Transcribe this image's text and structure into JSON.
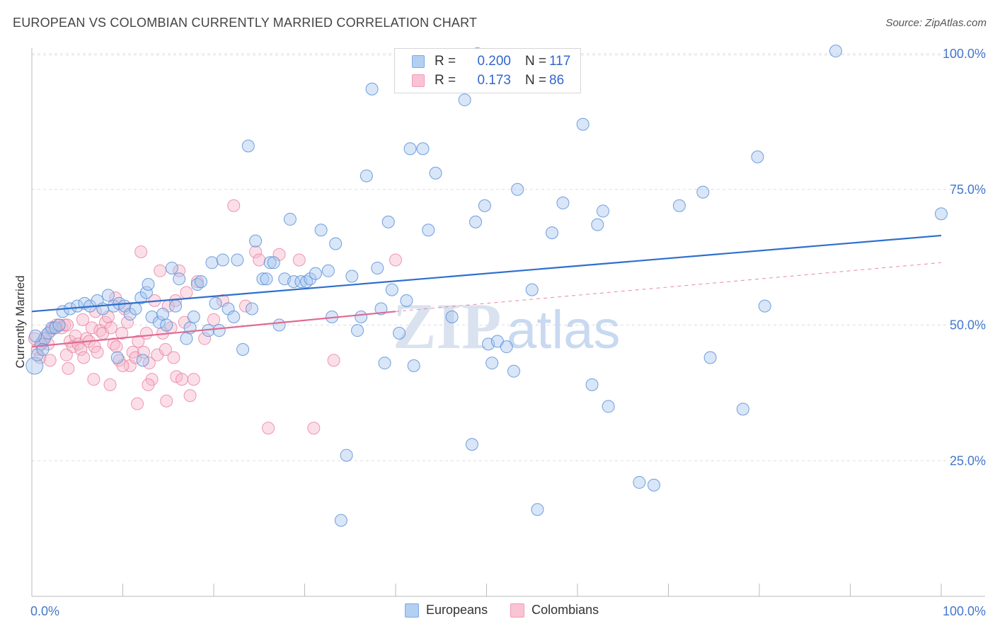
{
  "header": {
    "title": "EUROPEAN VS COLOMBIAN CURRENTLY MARRIED CORRELATION CHART",
    "source": "Source: ZipAtlas.com"
  },
  "watermark": {
    "zip": "ZIP",
    "atlas": "atlas"
  },
  "legend": {
    "r_label": "R =",
    "n_label": "N =",
    "rows": [
      {
        "name": "Europeans",
        "r": "0.200",
        "n": "117",
        "color": "#7aaae8"
      },
      {
        "name": "Colombians",
        "r": "0.173",
        "n": "86",
        "color": "#f29ab8"
      }
    ]
  },
  "colors": {
    "blue_fill": "#a9c8f0",
    "blue_stroke": "#5b8fd6",
    "blue_line": "#2f6fcc",
    "pink_fill": "#f7b9cd",
    "pink_stroke": "#e9809f",
    "pink_line": "#e06a94",
    "tick_text": "#4477cc"
  },
  "chart_data": {
    "type": "scatter",
    "title": "EUROPEAN VS COLOMBIAN CURRENTLY MARRIED CORRELATION CHART",
    "xlabel": "",
    "ylabel": "Currently Married",
    "xlim": [
      0,
      100
    ],
    "ylim": [
      0,
      102
    ],
    "x_tick_labels": [
      "0.0%",
      "100.0%"
    ],
    "y_ticks": [
      25,
      50,
      75,
      100
    ],
    "y_tick_labels": [
      "25.0%",
      "50.0%",
      "75.0%",
      "100.0%"
    ],
    "grid": "horizontal dashed",
    "legend_position": "top-center",
    "series": [
      {
        "name": "Europeans",
        "r": 0.2,
        "n": 117,
        "trend": {
          "x": [
            0,
            100
          ],
          "y": [
            52.5,
            66.5
          ],
          "style": "solid"
        },
        "points": [
          [
            0.3,
            42.5
          ],
          [
            0.6,
            44.5
          ],
          [
            1.0,
            46.5
          ],
          [
            1.4,
            47.5
          ],
          [
            1.8,
            48.5
          ],
          [
            2.2,
            49.5
          ],
          [
            2.6,
            49.5
          ],
          [
            3.0,
            50.0
          ],
          [
            3.4,
            52.5
          ],
          [
            4.2,
            53.0
          ],
          [
            5.0,
            53.5
          ],
          [
            5.8,
            54.0
          ],
          [
            6.4,
            53.5
          ],
          [
            7.2,
            54.5
          ],
          [
            7.8,
            53.0
          ],
          [
            8.4,
            55.5
          ],
          [
            9.0,
            53.5
          ],
          [
            9.6,
            54.0
          ],
          [
            10.2,
            53.5
          ],
          [
            10.8,
            52.0
          ],
          [
            11.4,
            53.0
          ],
          [
            12.0,
            55.0
          ],
          [
            12.6,
            56.0
          ],
          [
            12.8,
            57.5
          ],
          [
            13.2,
            51.5
          ],
          [
            14.0,
            50.5
          ],
          [
            14.4,
            52.0
          ],
          [
            14.8,
            50.0
          ],
          [
            15.4,
            60.5
          ],
          [
            15.8,
            53.5
          ],
          [
            16.2,
            58.5
          ],
          [
            17.0,
            47.5
          ],
          [
            17.4,
            49.5
          ],
          [
            17.8,
            51.5
          ],
          [
            18.2,
            57.5
          ],
          [
            18.6,
            58.0
          ],
          [
            19.4,
            49.0
          ],
          [
            19.8,
            61.5
          ],
          [
            20.2,
            54.0
          ],
          [
            20.6,
            49.0
          ],
          [
            21.0,
            62.0
          ],
          [
            21.6,
            53.0
          ],
          [
            22.2,
            51.5
          ],
          [
            22.6,
            62.0
          ],
          [
            23.2,
            45.5
          ],
          [
            23.8,
            83.0
          ],
          [
            24.2,
            53.0
          ],
          [
            24.6,
            65.5
          ],
          [
            25.4,
            58.5
          ],
          [
            25.8,
            58.5
          ],
          [
            26.2,
            61.5
          ],
          [
            26.6,
            61.5
          ],
          [
            27.2,
            50.0
          ],
          [
            27.8,
            58.5
          ],
          [
            28.4,
            69.5
          ],
          [
            28.8,
            58.0
          ],
          [
            29.6,
            58.0
          ],
          [
            30.2,
            58.0
          ],
          [
            30.6,
            58.5
          ],
          [
            31.2,
            59.5
          ],
          [
            31.8,
            67.5
          ],
          [
            32.6,
            60.0
          ],
          [
            33.0,
            51.5
          ],
          [
            33.4,
            65.0
          ],
          [
            34.6,
            26.0
          ],
          [
            35.2,
            59.0
          ],
          [
            35.8,
            49.0
          ],
          [
            36.2,
            51.5
          ],
          [
            36.8,
            77.5
          ],
          [
            37.4,
            93.5
          ],
          [
            38.0,
            60.5
          ],
          [
            38.4,
            53.0
          ],
          [
            38.8,
            43.0
          ],
          [
            39.2,
            69.0
          ],
          [
            39.6,
            56.5
          ],
          [
            40.4,
            48.5
          ],
          [
            41.2,
            54.5
          ],
          [
            41.6,
            82.5
          ],
          [
            42.0,
            42.5
          ],
          [
            43.0,
            82.5
          ],
          [
            43.6,
            67.5
          ],
          [
            44.4,
            78.0
          ],
          [
            46.2,
            51.5
          ],
          [
            47.6,
            91.5
          ],
          [
            48.4,
            28.0
          ],
          [
            48.8,
            69.0
          ],
          [
            49.0,
            100.0
          ],
          [
            49.8,
            72.0
          ],
          [
            50.2,
            46.5
          ],
          [
            50.6,
            43.0
          ],
          [
            51.2,
            47.0
          ],
          [
            52.2,
            46.0
          ],
          [
            52.6,
            95.0
          ],
          [
            53.0,
            41.5
          ],
          [
            53.4,
            75.0
          ],
          [
            55.0,
            56.5
          ],
          [
            55.6,
            16.0
          ],
          [
            57.2,
            67.0
          ],
          [
            58.4,
            72.5
          ],
          [
            60.6,
            87.0
          ],
          [
            61.6,
            39.0
          ],
          [
            62.2,
            68.5
          ],
          [
            62.8,
            71.0
          ],
          [
            63.4,
            35.0
          ],
          [
            66.8,
            21.0
          ],
          [
            68.4,
            20.5
          ],
          [
            71.2,
            72.0
          ],
          [
            73.8,
            74.5
          ],
          [
            74.6,
            44.0
          ],
          [
            78.2,
            34.5
          ],
          [
            79.8,
            81.0
          ],
          [
            80.6,
            53.5
          ],
          [
            88.4,
            100.5
          ],
          [
            100.0,
            70.5
          ],
          [
            34.0,
            14.0
          ],
          [
            0.4,
            48.0
          ],
          [
            1.2,
            45.5
          ],
          [
            9.4,
            44.0
          ],
          [
            12.2,
            43.5
          ]
        ]
      },
      {
        "name": "Colombians",
        "r": 0.173,
        "n": 86,
        "trend": {
          "x": [
            0,
            40
          ],
          "y": [
            46.0,
            52.5
          ],
          "style": "solid",
          "extension": {
            "x": [
              40,
              100
            ],
            "y": [
              52.5,
              61.5
            ],
            "style": "dashed"
          }
        },
        "points": [
          [
            0.3,
            47.5
          ],
          [
            0.6,
            45.5
          ],
          [
            0.9,
            44.0
          ],
          [
            1.2,
            47.0
          ],
          [
            1.5,
            48.0
          ],
          [
            1.8,
            46.5
          ],
          [
            2.1,
            49.0
          ],
          [
            2.4,
            49.5
          ],
          [
            2.7,
            50.0
          ],
          [
            3.0,
            50.0
          ],
          [
            3.3,
            49.5
          ],
          [
            3.6,
            50.0
          ],
          [
            3.9,
            50.0
          ],
          [
            4.2,
            47.0
          ],
          [
            4.5,
            46.0
          ],
          [
            4.8,
            48.0
          ],
          [
            5.1,
            46.5
          ],
          [
            5.4,
            45.5
          ],
          [
            5.7,
            44.0
          ],
          [
            6.0,
            47.5
          ],
          [
            6.3,
            47.0
          ],
          [
            6.6,
            49.5
          ],
          [
            6.9,
            46.0
          ],
          [
            7.2,
            45.0
          ],
          [
            7.5,
            49.0
          ],
          [
            7.8,
            48.5
          ],
          [
            8.1,
            50.5
          ],
          [
            8.4,
            51.5
          ],
          [
            8.7,
            49.5
          ],
          [
            9.0,
            46.5
          ],
          [
            9.3,
            46.0
          ],
          [
            9.6,
            43.5
          ],
          [
            9.9,
            48.5
          ],
          [
            10.2,
            53.0
          ],
          [
            10.5,
            50.5
          ],
          [
            10.8,
            42.5
          ],
          [
            11.1,
            45.0
          ],
          [
            11.4,
            44.0
          ],
          [
            11.7,
            47.0
          ],
          [
            12.0,
            63.5
          ],
          [
            12.3,
            45.0
          ],
          [
            12.6,
            48.5
          ],
          [
            12.9,
            43.0
          ],
          [
            13.2,
            40.0
          ],
          [
            13.5,
            54.5
          ],
          [
            13.8,
            44.5
          ],
          [
            14.1,
            60.0
          ],
          [
            14.4,
            48.5
          ],
          [
            14.7,
            45.5
          ],
          [
            15.0,
            53.5
          ],
          [
            15.3,
            49.5
          ],
          [
            15.6,
            44.0
          ],
          [
            15.9,
            40.5
          ],
          [
            16.2,
            60.0
          ],
          [
            16.5,
            40.0
          ],
          [
            17.0,
            56.0
          ],
          [
            17.4,
            37.0
          ],
          [
            17.8,
            40.0
          ],
          [
            18.2,
            58.0
          ],
          [
            19.0,
            47.5
          ],
          [
            20.0,
            51.0
          ],
          [
            21.0,
            54.5
          ],
          [
            22.2,
            72.0
          ],
          [
            23.5,
            53.5
          ],
          [
            24.6,
            63.5
          ],
          [
            25.0,
            62.0
          ],
          [
            26.0,
            31.0
          ],
          [
            27.2,
            63.0
          ],
          [
            29.4,
            62.0
          ],
          [
            31.0,
            31.0
          ],
          [
            33.2,
            43.5
          ],
          [
            40.0,
            62.0
          ],
          [
            2.0,
            43.5
          ],
          [
            4.0,
            42.0
          ],
          [
            6.8,
            40.0
          ],
          [
            8.6,
            39.0
          ],
          [
            10.0,
            42.5
          ],
          [
            11.6,
            35.5
          ],
          [
            12.8,
            39.0
          ],
          [
            14.8,
            36.0
          ],
          [
            15.8,
            54.5
          ],
          [
            16.8,
            50.5
          ],
          [
            5.6,
            51.0
          ],
          [
            7.0,
            52.5
          ],
          [
            9.2,
            55.0
          ],
          [
            3.8,
            44.5
          ]
        ]
      }
    ]
  }
}
